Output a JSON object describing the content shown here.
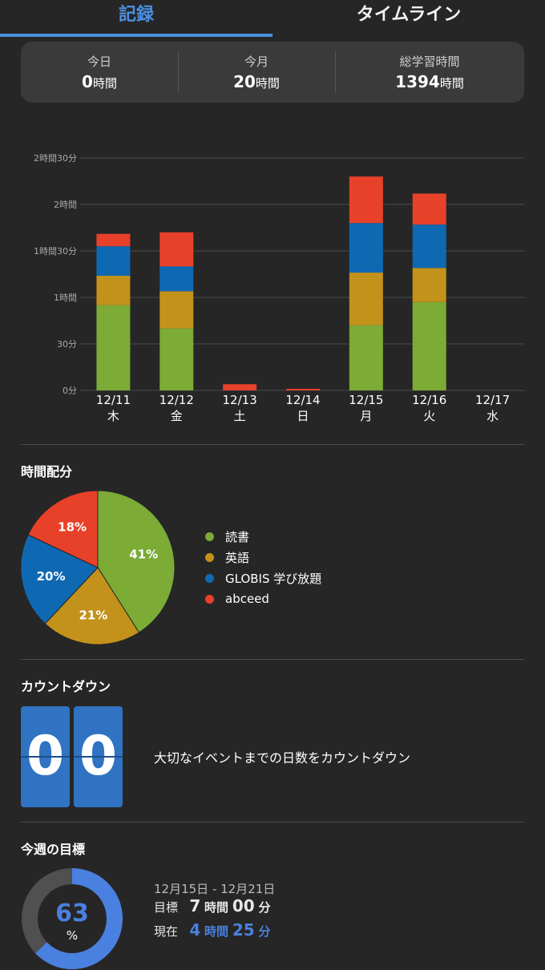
{
  "tabs": {
    "active": "記録",
    "inactive": "タイムライン"
  },
  "summary": [
    {
      "label": "今日",
      "value": "0",
      "unit": "時間"
    },
    {
      "label": "今月",
      "value": "20",
      "unit": "時間"
    },
    {
      "label": "総学習時間",
      "value": "1394",
      "unit": "時間"
    }
  ],
  "colors": {
    "reading": "#7cab36",
    "english": "#c3921b",
    "globis": "#0f69b2",
    "abceed": "#e8412a",
    "accent": "#4a90e2"
  },
  "chart_data": {
    "type": "bar",
    "stacked": true,
    "y_unit": "minutes",
    "ylim": [
      0,
      150
    ],
    "yticks": [
      {
        "value": 0,
        "label": "0分"
      },
      {
        "value": 30,
        "label": "30分"
      },
      {
        "value": 60,
        "label": "1時間"
      },
      {
        "value": 90,
        "label": "1時間30分"
      },
      {
        "value": 120,
        "label": "2時間"
      },
      {
        "value": 150,
        "label": "2時間30分"
      }
    ],
    "categories": [
      "12/11",
      "12/12",
      "12/13",
      "12/14",
      "12/15",
      "12/16",
      "12/17"
    ],
    "weekdays": [
      "木",
      "金",
      "土",
      "日",
      "月",
      "火",
      "水"
    ],
    "series": [
      {
        "color": "#7cab36",
        "values": [
          55,
          40,
          0,
          0,
          42,
          57,
          0
        ]
      },
      {
        "color": "#c3921b",
        "values": [
          19,
          24,
          0,
          0,
          34,
          22,
          0
        ]
      },
      {
        "color": "#0f69b2",
        "values": [
          19,
          16,
          0,
          0,
          32,
          28,
          0
        ]
      },
      {
        "color": "#e8412a",
        "values": [
          8,
          22,
          4,
          1,
          30,
          20,
          0
        ]
      }
    ]
  },
  "distribution": {
    "title": "時間配分",
    "slices": [
      {
        "name": "読書",
        "percent": 41,
        "label": "41%",
        "color": "#7cab36"
      },
      {
        "name": "英語",
        "percent": 21,
        "label": "21%",
        "color": "#c3921b"
      },
      {
        "name": "GLOBIS 学び放題",
        "percent": 20,
        "label": "20%",
        "color": "#0f69b2"
      },
      {
        "name": "abceed",
        "percent": 18,
        "label": "18%",
        "color": "#e8412a"
      }
    ]
  },
  "countdown": {
    "title": "カウントダウン",
    "digits": [
      "0",
      "0"
    ],
    "text": "大切なイベントまでの日数をカウントダウン"
  },
  "weekly_goal": {
    "title": "今週の目標",
    "range": "12月15日 - 12月21日",
    "progress_percent": 63,
    "progress_label": "63",
    "percent_symbol": "%",
    "goal": {
      "label": "目標",
      "hours": "7",
      "hours_unit": "時間",
      "minutes": "00",
      "minutes_unit": "分"
    },
    "current": {
      "label": "現在",
      "hours": "4",
      "hours_unit": "時間",
      "minutes": "25",
      "minutes_unit": "分"
    }
  }
}
